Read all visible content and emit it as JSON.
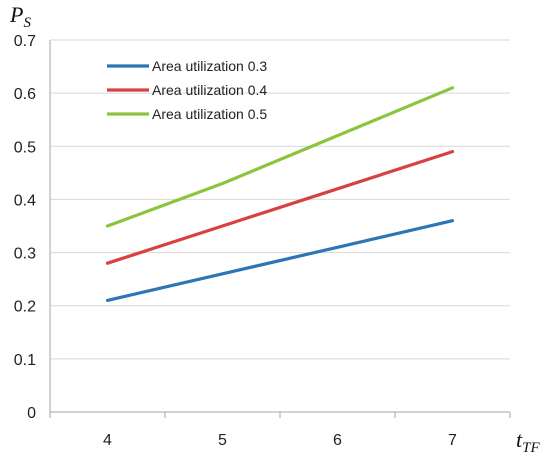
{
  "chart_data": {
    "type": "line",
    "x": [
      4,
      5,
      6,
      7
    ],
    "xlim": [
      3.5,
      7.5
    ],
    "ylim": [
      0,
      0.7
    ],
    "x_ticks": [
      "4",
      "5",
      "6",
      "7"
    ],
    "y_ticks": [
      "0",
      "0.1",
      "0.2",
      "0.3",
      "0.4",
      "0.5",
      "0.6",
      "0.7"
    ],
    "xlabel": {
      "main": "t",
      "sub": "TF"
    },
    "ylabel": {
      "main": "P",
      "sub": "S"
    },
    "grid": "horizontal",
    "legend_position": "top-left",
    "series": [
      {
        "name": "Area utilization 0.3",
        "color": "#2e75b6",
        "values": [
          0.21,
          0.26,
          0.31,
          0.36
        ]
      },
      {
        "name": "Area utilization 0.4",
        "color": "#d94040",
        "values": [
          0.28,
          0.35,
          0.42,
          0.49
        ]
      },
      {
        "name": "Area utilization 0.5",
        "color": "#8cc43c",
        "values": [
          0.35,
          0.43,
          0.52,
          0.61
        ]
      }
    ]
  }
}
